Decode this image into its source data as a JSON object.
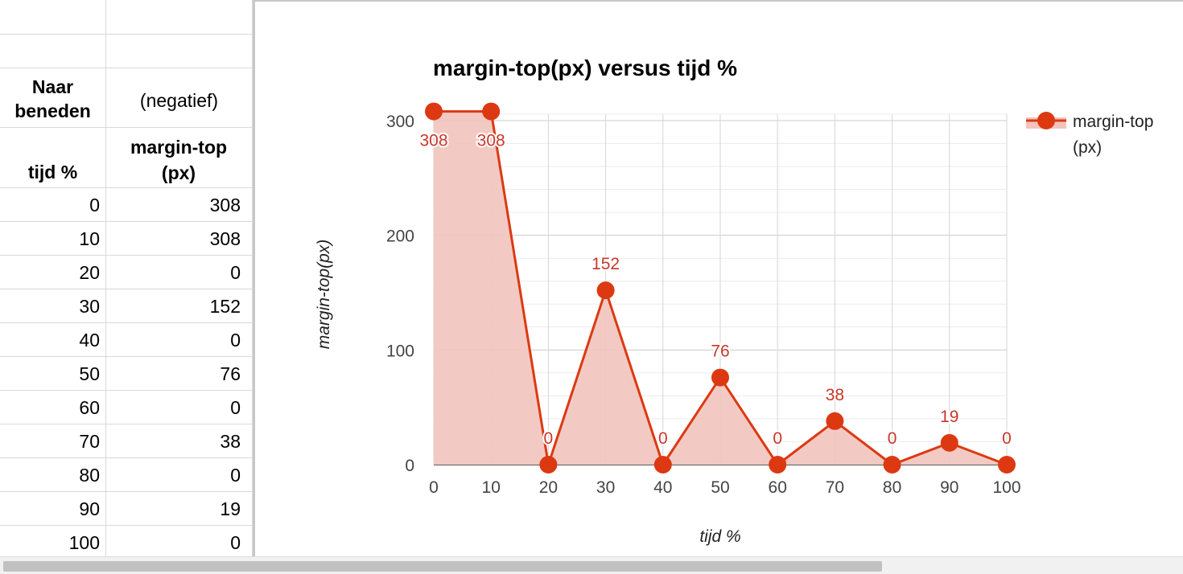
{
  "sheet": {
    "header_col_a": "Naar beneden",
    "header_col_b": "(negatief)",
    "col_a_label": "tijd %",
    "col_b_label": "margin-top (px)",
    "rows": [
      {
        "a": "0",
        "b": "308"
      },
      {
        "a": "10",
        "b": "308"
      },
      {
        "a": "20",
        "b": "0"
      },
      {
        "a": "30",
        "b": "152"
      },
      {
        "a": "40",
        "b": "0"
      },
      {
        "a": "50",
        "b": "76"
      },
      {
        "a": "60",
        "b": "0"
      },
      {
        "a": "70",
        "b": "38"
      },
      {
        "a": "80",
        "b": "0"
      },
      {
        "a": "90",
        "b": "19"
      },
      {
        "a": "100",
        "b": "0"
      }
    ]
  },
  "chart_data": {
    "type": "area",
    "title": "margin-top(px) versus tijd %",
    "xlabel": "tijd %",
    "ylabel": "margin-top(px)",
    "x": [
      0,
      10,
      20,
      30,
      40,
      50,
      60,
      70,
      80,
      90,
      100
    ],
    "series": [
      {
        "name": "margin-top (px)",
        "values": [
          308,
          308,
          0,
          152,
          0,
          76,
          0,
          38,
          0,
          19,
          0
        ]
      }
    ],
    "xlim": [
      0,
      100
    ],
    "ylim": [
      0,
      300
    ],
    "x_ticks": [
      0,
      10,
      20,
      30,
      40,
      50,
      60,
      70,
      80,
      90,
      100
    ],
    "y_ticks": [
      0,
      100,
      200,
      300
    ],
    "grid": true,
    "data_labels": true,
    "markers": true,
    "legend_position": "right",
    "colors": {
      "line": "#dc3912",
      "fill": "#f2c4bd",
      "label": "#c8372a"
    }
  }
}
